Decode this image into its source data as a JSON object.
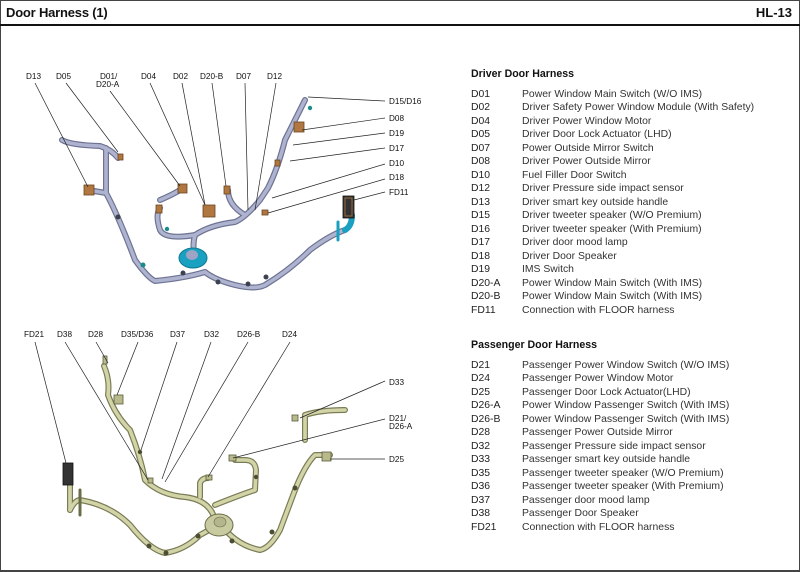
{
  "header": {
    "title": "Door Harness (1)",
    "page_code": "HL-13"
  },
  "driver_diagram": {
    "callouts_top": [
      "D13",
      "D05",
      "D01/",
      "D20-A",
      "D04",
      "D02",
      "D20-B",
      "D07",
      "D12"
    ],
    "callouts_right": [
      "D15/D16",
      "D08",
      "D19",
      "D17",
      "D10",
      "D18",
      "FD11"
    ]
  },
  "passenger_diagram": {
    "callouts_top": [
      "FD21",
      "D38",
      "D28",
      "D35/D36",
      "D37",
      "D32",
      "D26-B",
      "D24"
    ],
    "callouts_right": [
      "D33",
      "D21/",
      "D26-A",
      "D25"
    ]
  },
  "driver_legend": {
    "heading": "Driver Door Harness",
    "items": [
      {
        "code": "D01",
        "desc": "Power Window Main Switch (W/O IMS)"
      },
      {
        "code": "D02",
        "desc": "Driver Safety Power Window Module (With Safety)"
      },
      {
        "code": "D04",
        "desc": "Driver Power Window Motor"
      },
      {
        "code": "D05",
        "desc": "Driver Door Lock Actuator (LHD)"
      },
      {
        "code": "D07",
        "desc": "Power Outside Mirror Switch"
      },
      {
        "code": "D08",
        "desc": "Driver Power Outside Mirror"
      },
      {
        "code": "D10",
        "desc": "Fuel Filler Door Switch"
      },
      {
        "code": "D12",
        "desc": "Driver Pressure side impact sensor"
      },
      {
        "code": "D13",
        "desc": "Driver smart key outside handle"
      },
      {
        "code": "D15",
        "desc": "Driver tweeter speaker (W/O Premium)"
      },
      {
        "code": "D16",
        "desc": "Driver tweeter speaker (With Premium)"
      },
      {
        "code": "D17",
        "desc": "Driver door mood lamp"
      },
      {
        "code": "D18",
        "desc": "Driver Door Speaker"
      },
      {
        "code": "D19",
        "desc": "IMS Switch"
      },
      {
        "code": "D20-A",
        "desc": "Power Window Main Switch (With IMS)"
      },
      {
        "code": "D20-B",
        "desc": "Power Window Main Switch (With IMS)"
      },
      {
        "code": "FD11",
        "desc": "Connection with FLOOR harness"
      }
    ]
  },
  "passenger_legend": {
    "heading": "Passenger Door Harness",
    "items": [
      {
        "code": "D21",
        "desc": "Passenger Power Window Switch (W/O IMS)"
      },
      {
        "code": "D24",
        "desc": "Passenger Power Window Motor"
      },
      {
        "code": "D25",
        "desc": "Passenger Door Lock Actuator(LHD)"
      },
      {
        "code": "D26-A",
        "desc": "Power Window Passenger Switch (With IMS)"
      },
      {
        "code": "D26-B",
        "desc": "Power Window Passenger Switch (With IMS)"
      },
      {
        "code": "D28",
        "desc": "Passenger Power Outside Mirror"
      },
      {
        "code": "D32",
        "desc": "Passenger Pressure side impact sensor"
      },
      {
        "code": "D33",
        "desc": "Passenger smart key outside handle"
      },
      {
        "code": "D35",
        "desc": "Passenger  tweeter speaker (W/O Premium)"
      },
      {
        "code": "D36",
        "desc": "Passenger  tweeter speaker (With Premium)"
      },
      {
        "code": "D37",
        "desc": "Passenger door mood lamp"
      },
      {
        "code": "D38",
        "desc": "Passenger Door Speaker"
      },
      {
        "code": "FD21",
        "desc": "Connection with FLOOR harness"
      }
    ]
  },
  "colors": {
    "driver_harness": "#9ea4c4",
    "driver_accent": "#1aa0c0",
    "connector": "#b07840",
    "passenger_harness": "#c8caa0",
    "passenger_dark": "#6b6c48"
  }
}
